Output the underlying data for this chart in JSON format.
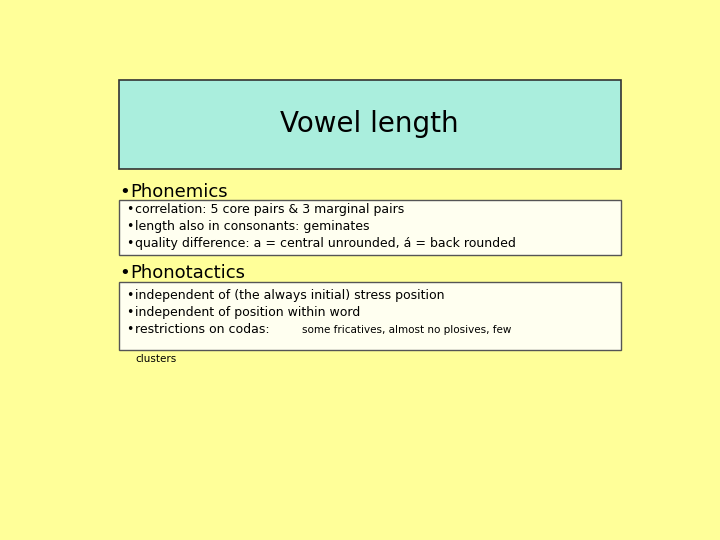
{
  "title": "Vowel length",
  "background_color": "#ffff99",
  "title_bg_color": "#aaeedd",
  "title_border_color": "#333333",
  "box_bg_color": "#fffff0",
  "box_border_color": "#555555",
  "section1_header": "Phonemics",
  "section1_bullets": [
    "correlation: 5 core pairs & 3 marginal pairs",
    "length also in consonants: geminates",
    "quality difference: a = central unrounded, á = back rounded"
  ],
  "section2_header": "Phonotactics",
  "section2_bullets": [
    "independent of (the always initial) stress position",
    "independent of position within word"
  ],
  "section2_bullet3_normal": "restrictions on codas: ",
  "section2_bullet3_small": "some fricatives, almost no plosives, few",
  "section2_bullet3_cont": "clusters",
  "title_fontsize": 20,
  "header_fontsize": 13,
  "bullet_fontsize": 9,
  "small_fontsize": 7.5
}
